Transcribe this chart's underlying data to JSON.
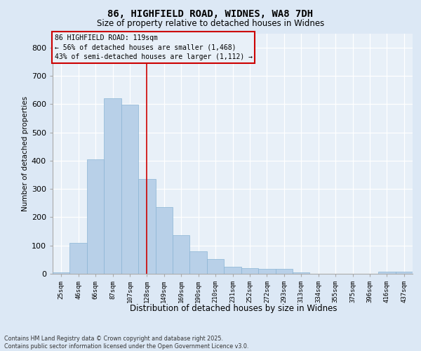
{
  "title1": "86, HIGHFIELD ROAD, WIDNES, WA8 7DH",
  "title2": "Size of property relative to detached houses in Widnes",
  "xlabel": "Distribution of detached houses by size in Widnes",
  "ylabel": "Number of detached properties",
  "categories": [
    "25sqm",
    "46sqm",
    "66sqm",
    "87sqm",
    "107sqm",
    "128sqm",
    "149sqm",
    "169sqm",
    "190sqm",
    "210sqm",
    "231sqm",
    "252sqm",
    "272sqm",
    "293sqm",
    "313sqm",
    "334sqm",
    "355sqm",
    "375sqm",
    "396sqm",
    "416sqm",
    "437sqm"
  ],
  "values": [
    5,
    110,
    405,
    620,
    598,
    335,
    237,
    137,
    80,
    53,
    25,
    20,
    17,
    18,
    6,
    0,
    0,
    0,
    0,
    8,
    8
  ],
  "bar_color": "#b8d0e8",
  "bar_edge_color": "#8ab4d4",
  "vline_x": 5.0,
  "vline_color": "#cc0000",
  "annotation_text": "86 HIGHFIELD ROAD: 119sqm\n← 56% of detached houses are smaller (1,468)\n43% of semi-detached houses are larger (1,112) →",
  "ylim_max": 850,
  "yticks": [
    0,
    100,
    200,
    300,
    400,
    500,
    600,
    700,
    800
  ],
  "footnote": "Contains HM Land Registry data © Crown copyright and database right 2025.\nContains public sector information licensed under the Open Government Licence v3.0.",
  "bg_color": "#dce8f5",
  "plot_bg_color": "#e8f0f8"
}
